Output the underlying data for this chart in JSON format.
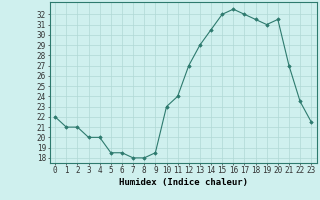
{
  "x": [
    0,
    1,
    2,
    3,
    4,
    5,
    6,
    7,
    8,
    9,
    10,
    11,
    12,
    13,
    14,
    15,
    16,
    17,
    18,
    19,
    20,
    21,
    22,
    23
  ],
  "y": [
    22,
    21,
    21,
    20,
    20,
    18.5,
    18.5,
    18,
    18,
    18.5,
    23,
    24,
    27,
    29,
    30.5,
    32,
    32.5,
    32,
    31.5,
    31,
    31.5,
    27,
    23.5,
    21.5
  ],
  "line_color": "#2d7a6e",
  "marker_color": "#2d7a6e",
  "bg_color": "#cff0ee",
  "grid_color": "#b0d8d5",
  "xlabel": "Humidex (Indice chaleur)",
  "ylim": [
    17.5,
    33.2
  ],
  "xlim": [
    -0.5,
    23.5
  ],
  "yticks": [
    18,
    19,
    20,
    21,
    22,
    23,
    24,
    25,
    26,
    27,
    28,
    29,
    30,
    31,
    32
  ],
  "xticks": [
    0,
    1,
    2,
    3,
    4,
    5,
    6,
    7,
    8,
    9,
    10,
    11,
    12,
    13,
    14,
    15,
    16,
    17,
    18,
    19,
    20,
    21,
    22,
    23
  ],
  "xlabel_fontsize": 6.5,
  "tick_fontsize": 5.5
}
